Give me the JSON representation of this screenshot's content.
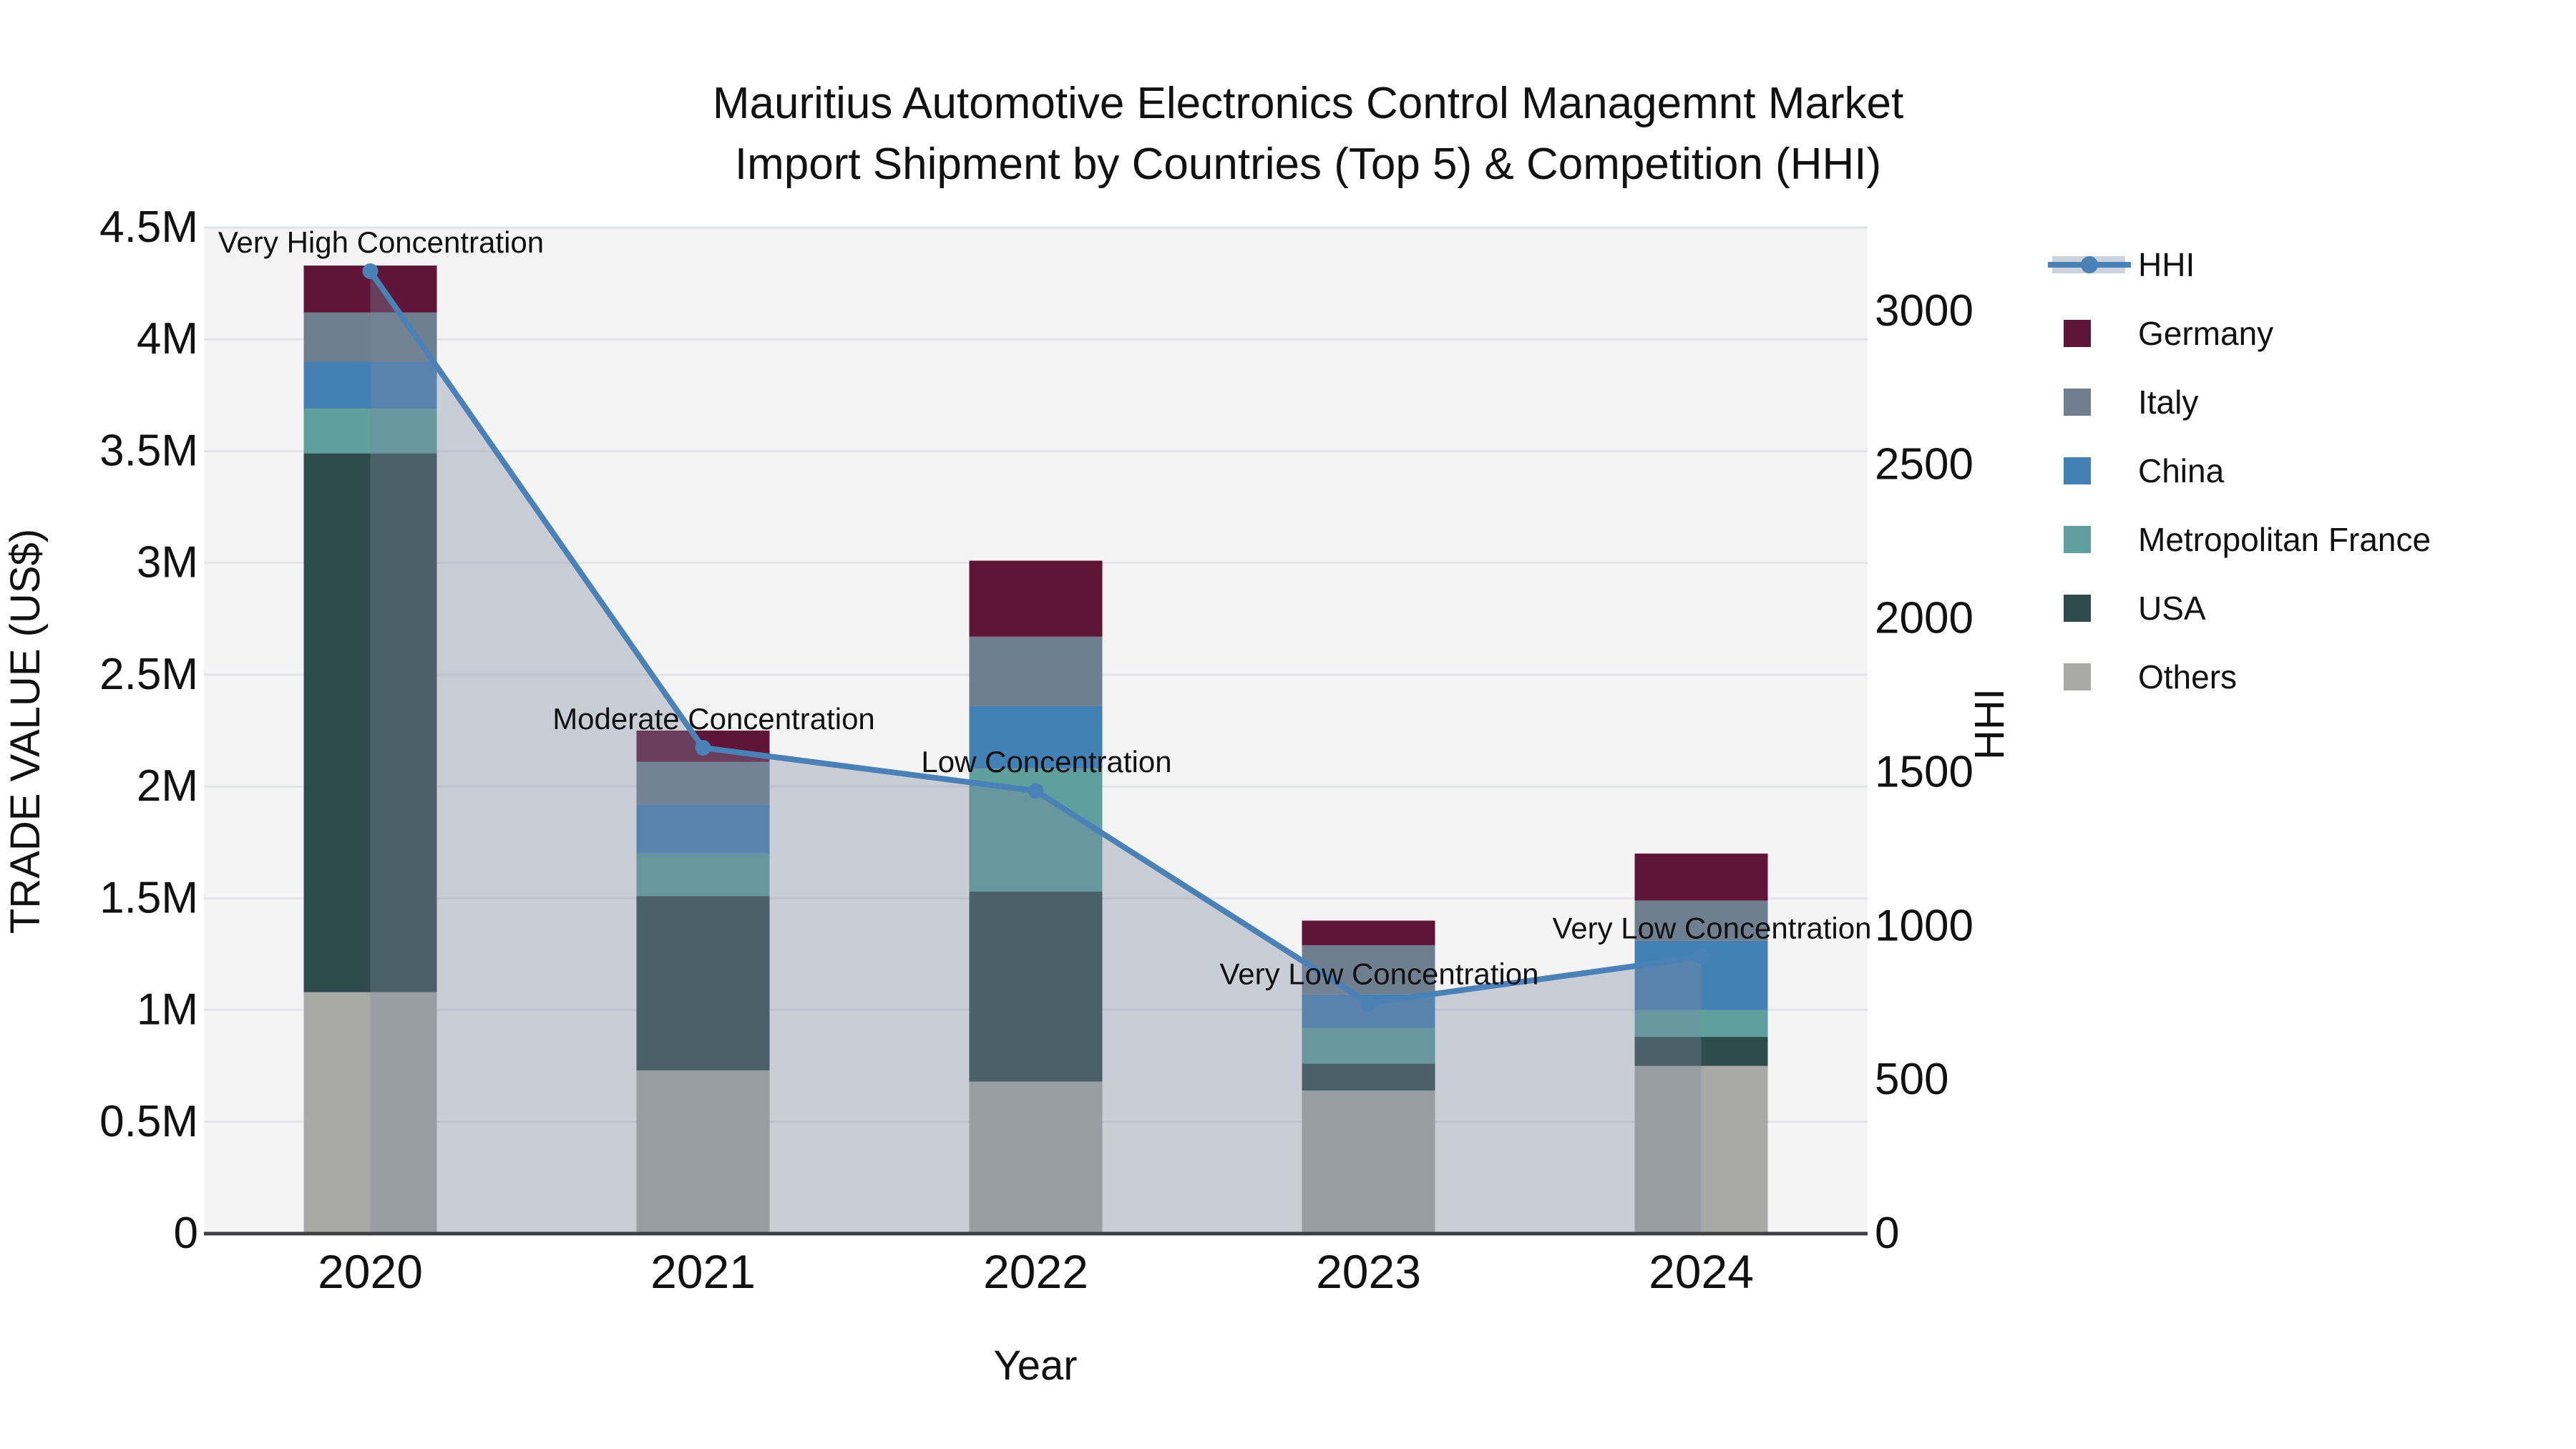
{
  "title": {
    "line1": "Mauritius Automotive Electronics Control Managemnt Market",
    "line2": "Import Shipment by Countries (Top 5) & Competition (HHI)"
  },
  "axes": {
    "x": {
      "title": "Year",
      "tick_labels": [
        "2020",
        "2021",
        "2022",
        "2023",
        "2024"
      ]
    },
    "y_left": {
      "title": "TRADE VALUE (US$)",
      "tick_labels": [
        "0",
        "0.5M",
        "1M",
        "1.5M",
        "2M",
        "2.5M",
        "3M",
        "3.5M",
        "4M",
        "4.5M"
      ],
      "range_usd": [
        0,
        4500000
      ]
    },
    "y_right": {
      "title": "HHI",
      "tick_labels": [
        "0",
        "500",
        "1000",
        "1500",
        "2000",
        "2500",
        "3000"
      ],
      "tick_values": [
        0,
        500,
        1000,
        1500,
        2000,
        2500,
        3000
      ],
      "range": [
        0,
        3272
      ]
    }
  },
  "legend": {
    "items": [
      {
        "label": "HHI",
        "swatch": "line-marker",
        "color": "#4a82b8",
        "band_color": "#ccd3dd"
      },
      {
        "label": "Germany",
        "swatch": "square",
        "color": "#5e1538"
      },
      {
        "label": "Italy",
        "swatch": "square",
        "color": "#6f7f8f"
      },
      {
        "label": "China",
        "swatch": "square",
        "color": "#4381b5"
      },
      {
        "label": "Metropolitan France",
        "swatch": "square",
        "color": "#5fa09e"
      },
      {
        "label": "USA",
        "swatch": "square",
        "color": "#2e4c4b"
      },
      {
        "label": "Others",
        "swatch": "square",
        "color": "#a9a9a7"
      }
    ]
  },
  "chart_data": {
    "type": "combo: stacked-bar (left axis) + line-with-area (right axis)",
    "categories": [
      "2020",
      "2021",
      "2022",
      "2023",
      "2024"
    ],
    "bar_value_unit": "US$ trade value",
    "stack_order_bottom_to_top": [
      "Others",
      "USA",
      "Metropolitan France",
      "China",
      "Italy",
      "Germany"
    ],
    "series": [
      {
        "name": "Germany",
        "color": "#5e1538",
        "values": [
          210000,
          140000,
          340000,
          110000,
          210000
        ]
      },
      {
        "name": "Italy",
        "color": "#6f7f8f",
        "values": [
          220000,
          190000,
          310000,
          220000,
          180000
        ]
      },
      {
        "name": "China",
        "color": "#4381b5",
        "values": [
          210000,
          220000,
          280000,
          150000,
          310000
        ]
      },
      {
        "name": "Metropolitan France",
        "color": "#5fa09e",
        "values": [
          200000,
          190000,
          550000,
          160000,
          120000
        ]
      },
      {
        "name": "USA",
        "color": "#2e4c4b",
        "values": [
          2410000,
          780000,
          850000,
          120000,
          130000
        ]
      },
      {
        "name": "Others",
        "color": "#a9a9a7",
        "values": [
          1080000,
          730000,
          680000,
          640000,
          750000
        ]
      }
    ],
    "line": {
      "name": "HHI",
      "axis": "right",
      "color": "#4a82b8",
      "area_fill": "rgba(125,136,162,0.36)",
      "values": [
        3130,
        1580,
        1440,
        750,
        900
      ]
    },
    "annotations": [
      {
        "category": "2020",
        "text": "Very High Concentration"
      },
      {
        "category": "2021",
        "text": "Moderate Concentration"
      },
      {
        "category": "2022",
        "text": "Low Concentration"
      },
      {
        "category": "2023",
        "text": "Very Low Concentration"
      },
      {
        "category": "2024",
        "text": "Very Low Concentration"
      }
    ],
    "xlabel": "Year",
    "ylabel_left": "TRADE VALUE (US$)",
    "ylabel_right": "HHI",
    "y_left_lim": [
      0,
      4500000
    ],
    "y_right_lim": [
      0,
      3272
    ],
    "grid": true,
    "legend_position": "right"
  },
  "colors": {
    "page_bg": "#ffffff",
    "plot_bg": "#f4f4f5",
    "gridline": "#e2e4e9",
    "axis_line": "#3f3f42",
    "text": "#111111"
  }
}
